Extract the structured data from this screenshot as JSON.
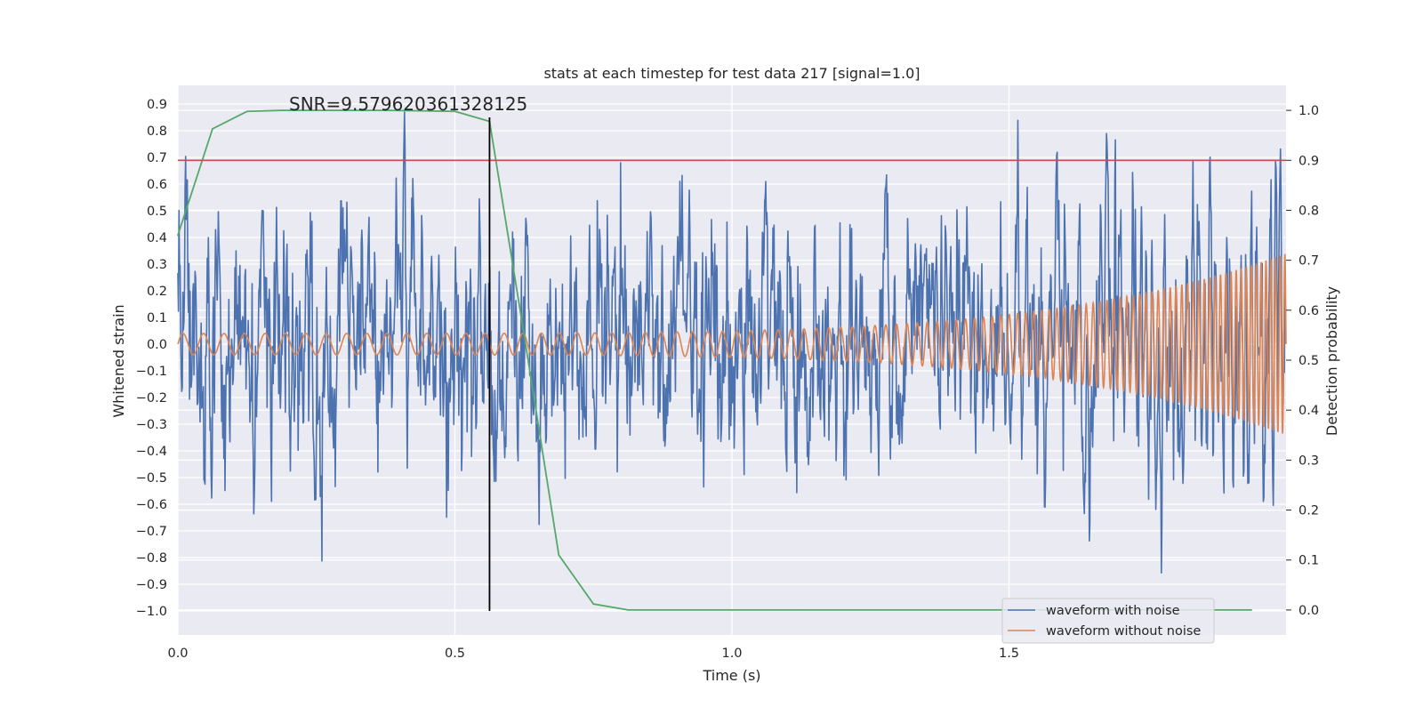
{
  "chart_data": {
    "type": "line",
    "title": "stats at each timestep for test data 217 [signal=1.0]",
    "xlabel": "Time (s)",
    "ylabel": "Whitened strain",
    "y2label": "Detection probability",
    "annotation": "SNR=9.579620361328125",
    "xlim": [
      0.0,
      2.0
    ],
    "ylim": [
      -1.09,
      0.97
    ],
    "y2lim": [
      -0.05,
      1.05
    ],
    "xticks": [
      0.0,
      0.5,
      1.0,
      1.5
    ],
    "xtick_labels": [
      "0.0",
      "0.5",
      "1.0",
      "1.5"
    ],
    "yticks": [
      -1.0,
      -0.9,
      -0.8,
      -0.7,
      -0.6,
      -0.5,
      -0.4,
      -0.3,
      -0.2,
      -0.1,
      0.0,
      0.1,
      0.2,
      0.3,
      0.4,
      0.5,
      0.6,
      0.7,
      0.8,
      0.9
    ],
    "ytick_labels": [
      "−1.0",
      "−0.9",
      "−0.8",
      "−0.7",
      "−0.6",
      "−0.5",
      "−0.4",
      "−0.3",
      "−0.2",
      "−0.1",
      "0.0",
      "0.1",
      "0.2",
      "0.3",
      "0.4",
      "0.5",
      "0.6",
      "0.7",
      "0.8",
      "0.9"
    ],
    "y2ticks": [
      0.0,
      0.1,
      0.2,
      0.3,
      0.4,
      0.5,
      0.6,
      0.7,
      0.8,
      0.9,
      1.0
    ],
    "y2tick_labels": [
      "0.0",
      "0.1",
      "0.2",
      "0.3",
      "0.4",
      "0.5",
      "0.6",
      "0.7",
      "0.8",
      "0.9",
      "1.0"
    ],
    "grid": true,
    "legend_position": "lower-right",
    "legend": [
      "waveform with noise",
      "waveform without noise"
    ],
    "colors": {
      "noisy": "#4c72b0",
      "clean": "#dd8452",
      "probability": "#55a868",
      "threshold": "#c44e52",
      "marker": "#000000",
      "background": "#eaeaf2",
      "grid": "#ffffff"
    },
    "series": [
      {
        "name": "waveform with noise",
        "axis": "left",
        "n_points": 2000,
        "duration": 2.0,
        "approx_std": 0.26,
        "range": [
          -1.0,
          0.87
        ]
      },
      {
        "name": "waveform without noise",
        "axis": "left",
        "kind": "chirp",
        "amplitude_start": 0.04,
        "amplitude_end": 0.34,
        "frequency_start_hz": 27,
        "frequency_end_hz": 120
      },
      {
        "axis": "right",
        "x": [
          0.0,
          0.0625,
          0.125,
          0.1875,
          0.25,
          0.3125,
          0.375,
          0.4375,
          0.5,
          0.5625,
          0.625,
          0.6875,
          0.75,
          0.8125,
          0.875,
          0.9375,
          1.0,
          1.0625,
          1.125,
          1.1875,
          1.25,
          1.3125,
          1.375,
          1.4375,
          1.5,
          1.5625,
          1.625,
          1.6875,
          1.75,
          1.8125,
          1.875,
          1.9375
        ],
        "values": [
          0.75,
          0.963,
          0.998,
          1.0,
          1.0,
          1.0,
          1.0,
          0.999,
          0.998,
          0.978,
          0.55,
          0.11,
          0.012,
          0.0,
          0.0,
          0.0,
          0.0,
          0.0,
          0.0,
          0.0,
          0.0,
          0.0,
          0.0,
          0.0,
          0.0,
          0.0,
          0.0,
          0.0,
          0.0,
          0.0,
          0.0,
          0.0
        ]
      },
      {
        "axis": "right",
        "kind": "hline",
        "value": 0.9
      },
      {
        "axis": "left",
        "kind": "vline",
        "x": 0.5625,
        "y_range": [
          -1.0,
          0.85
        ]
      }
    ]
  }
}
